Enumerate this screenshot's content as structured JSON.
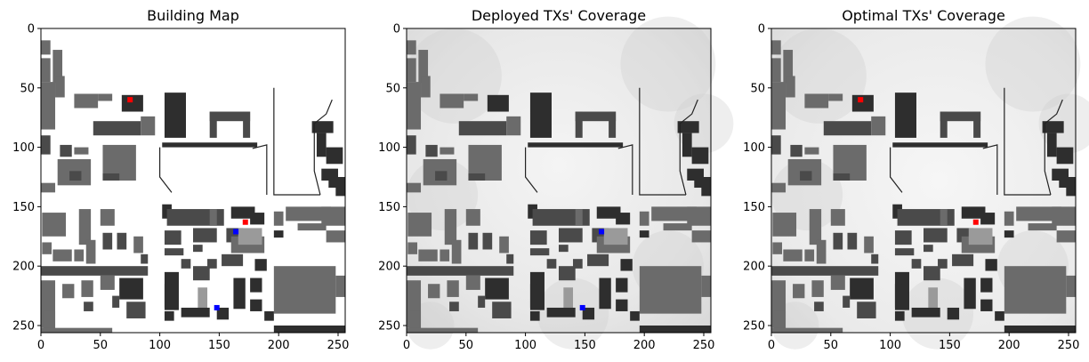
{
  "chart_data": [
    {
      "type": "heatmap",
      "title": "Building Map",
      "xlabel": "",
      "ylabel": "",
      "xlim": [
        0,
        256
      ],
      "ylim": [
        256,
        0
      ],
      "xticks": [
        0,
        50,
        100,
        150,
        200,
        250
      ],
      "yticks": [
        0,
        50,
        100,
        150,
        200,
        250
      ],
      "background": "white",
      "markers": [
        {
          "x": 75,
          "y": 60,
          "color": "#ff0000"
        },
        {
          "x": 172,
          "y": 163,
          "color": "#ff0000"
        },
        {
          "x": 164,
          "y": 171,
          "color": "#0000ff"
        },
        {
          "x": 148,
          "y": 235,
          "color": "#0000ff"
        }
      ]
    },
    {
      "type": "heatmap",
      "title": "Deployed TXs' Coverage",
      "xlabel": "",
      "ylabel": "",
      "xlim": [
        0,
        256
      ],
      "ylim": [
        256,
        0
      ],
      "xticks": [
        0,
        50,
        100,
        150,
        200,
        250
      ],
      "yticks": [
        0,
        50,
        100,
        150,
        200,
        250
      ],
      "background": "coverage",
      "markers": [
        {
          "x": 164,
          "y": 171,
          "color": "#0000ff"
        },
        {
          "x": 148,
          "y": 235,
          "color": "#0000ff"
        }
      ]
    },
    {
      "type": "heatmap",
      "title": "Optimal TXs' Coverage",
      "xlabel": "",
      "ylabel": "",
      "xlim": [
        0,
        256
      ],
      "ylim": [
        256,
        0
      ],
      "xticks": [
        0,
        50,
        100,
        150,
        200,
        250
      ],
      "yticks": [
        0,
        50,
        100,
        150,
        200,
        250
      ],
      "background": "coverage",
      "markers": [
        {
          "x": 75,
          "y": 60,
          "color": "#ff0000"
        },
        {
          "x": 172,
          "y": 163,
          "color": "#ff0000"
        }
      ]
    }
  ],
  "colors": {
    "dark_building": "#2e2e2e",
    "mid_building": "#4a4a4a",
    "gray_building": "#6b6b6b",
    "light_building": "#9a9a9a",
    "tx_optimal": "#ff0000",
    "tx_deployed": "#0000ff"
  }
}
